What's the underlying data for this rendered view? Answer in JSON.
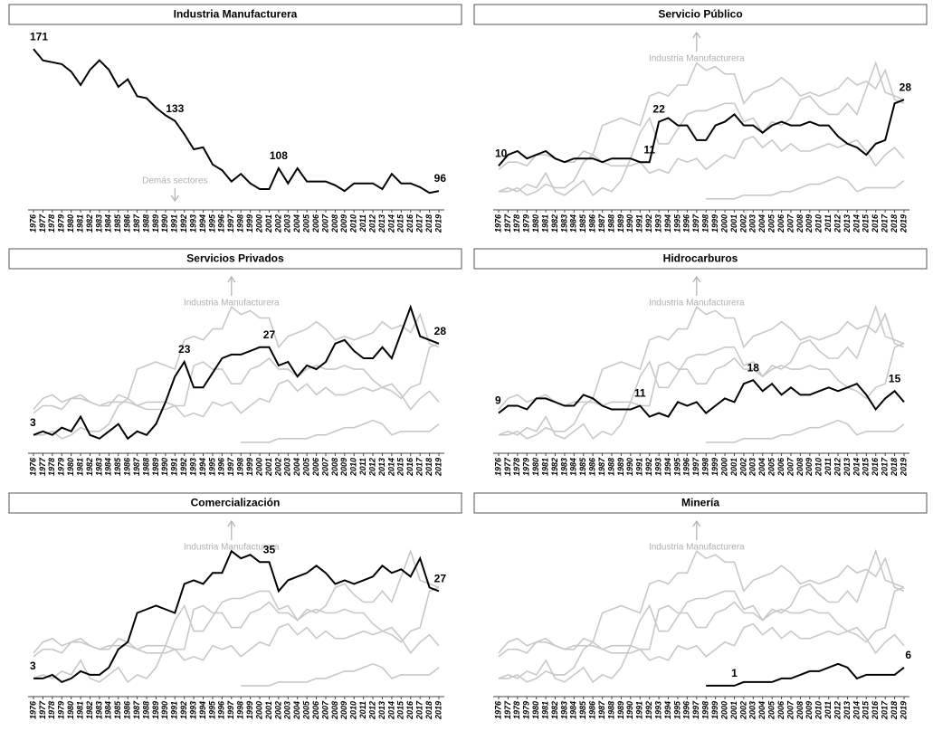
{
  "chart_data": [
    {
      "type": "line",
      "title": "Industria Manufacturera",
      "categories": [
        "1976",
        "1977",
        "1978",
        "1979",
        "1980",
        "1981",
        "1982",
        "1983",
        "1984",
        "1985",
        "1986",
        "1987",
        "1988",
        "1989",
        "1990",
        "1991",
        "1992",
        "1993",
        "1994",
        "1995",
        "1996",
        "1997",
        "1998",
        "1999",
        "2000",
        "2001",
        "2002",
        "2003",
        "2004",
        "2005",
        "2006",
        "2007",
        "2008",
        "2009",
        "2010",
        "2011",
        "2012",
        "2013",
        "2014",
        "2015",
        "2016",
        "2017",
        "2018",
        "2019"
      ],
      "series": [
        {
          "color": "#000000",
          "values": [
            171,
            165,
            164,
            163,
            159,
            152,
            160,
            165,
            160,
            151,
            155,
            146,
            145,
            140,
            136,
            133,
            126,
            118,
            119,
            110,
            107,
            101,
            105,
            100,
            97,
            97,
            108,
            100,
            108,
            101,
            101,
            101,
            99,
            96,
            100,
            100,
            100,
            97,
            105,
            100,
            100,
            98,
            95,
            96
          ]
        }
      ],
      "labeled_points": [
        0,
        15,
        26,
        43
      ],
      "ylim": [
        86,
        183
      ],
      "show_others": false,
      "others_color": "#c8c8c8",
      "annotation": "Demás sectores",
      "annotation_arrow": "down"
    },
    {
      "type": "line",
      "title": "Servicio Público",
      "categories": [
        "1976",
        "1977",
        "1978",
        "1979",
        "1980",
        "1981",
        "1982",
        "1983",
        "1984",
        "1985",
        "1986",
        "1987",
        "1988",
        "1989",
        "1990",
        "1991",
        "1992",
        "1993",
        "1994",
        "1995",
        "1996",
        "1997",
        "1998",
        "1999",
        "2000",
        "2001",
        "2002",
        "2003",
        "2004",
        "2005",
        "2006",
        "2007",
        "2008",
        "2009",
        "2010",
        "2011",
        "2012",
        "2013",
        "2014",
        "2015",
        "2016",
        "2017",
        "2018",
        "2019"
      ],
      "series": [
        {
          "color": "#000000",
          "values": [
            10,
            13,
            14,
            12,
            13,
            14,
            12,
            11,
            12,
            12,
            12,
            11,
            12,
            12,
            12,
            11,
            11,
            22,
            23,
            21,
            21,
            17,
            17,
            21,
            22,
            24,
            21,
            21,
            19,
            21,
            22,
            21,
            21,
            22,
            21,
            21,
            18,
            16,
            15,
            13,
            16,
            17,
            27,
            28
          ]
        }
      ],
      "labeled_points": [
        0,
        16,
        17,
        43
      ],
      "ylim": [
        -2,
        48
      ],
      "show_others": true,
      "others_color": "#c8c8c8",
      "annotation": "Industria Manufacturera",
      "annotation_arrow": "up"
    },
    {
      "type": "line",
      "title": "Servicios Privados",
      "categories": [
        "1976",
        "1977",
        "1978",
        "1979",
        "1980",
        "1981",
        "1982",
        "1983",
        "1984",
        "1985",
        "1986",
        "1987",
        "1988",
        "1989",
        "1990",
        "1991",
        "1992",
        "1993",
        "1994",
        "1995",
        "1996",
        "1997",
        "1998",
        "1999",
        "2000",
        "2001",
        "2002",
        "2003",
        "2004",
        "2005",
        "2006",
        "2007",
        "2008",
        "2009",
        "2010",
        "2011",
        "2012",
        "2013",
        "2014",
        "2015",
        "2016",
        "2017",
        "2018",
        "2019"
      ],
      "series": [
        {
          "color": "#000000",
          "values": [
            3,
            4,
            3,
            5,
            4,
            8,
            3,
            2,
            4,
            6,
            2,
            4,
            3,
            6,
            12,
            19,
            23,
            16,
            16,
            20,
            24,
            25,
            25,
            26,
            27,
            27,
            22,
            23,
            19,
            22,
            21,
            23,
            28,
            29,
            26,
            24,
            24,
            27,
            24,
            31,
            38,
            30,
            29,
            28
          ]
        }
      ],
      "labeled_points": [
        0,
        16,
        25,
        43
      ],
      "ylim": [
        -2,
        48
      ],
      "show_others": true,
      "others_color": "#c8c8c8",
      "annotation": "Industria Manufacturera",
      "annotation_arrow": "up"
    },
    {
      "type": "line",
      "title": "Hidrocarburos",
      "categories": [
        "1976",
        "1977",
        "1978",
        "1979",
        "1980",
        "1981",
        "1982",
        "1983",
        "1984",
        "1985",
        "1986",
        "1987",
        "1988",
        "1989",
        "1990",
        "1991",
        "1992",
        "1993",
        "1994",
        "1995",
        "1996",
        "1997",
        "1998",
        "1999",
        "2000",
        "2001",
        "2002",
        "2003",
        "2004",
        "2005",
        "2006",
        "2007",
        "2008",
        "2009",
        "2010",
        "2011",
        "2012",
        "2013",
        "2014",
        "2015",
        "2016",
        "2017",
        "2018",
        "2019"
      ],
      "series": [
        {
          "color": "#000000",
          "values": [
            9,
            11,
            11,
            10,
            13,
            13,
            12,
            11,
            11,
            14,
            13,
            11,
            10,
            10,
            10,
            11,
            8,
            9,
            8,
            12,
            11,
            12,
            9,
            11,
            13,
            12,
            17,
            18,
            15,
            17,
            14,
            16,
            14,
            14,
            15,
            16,
            15,
            16,
            17,
            14,
            10,
            13,
            15,
            12
          ]
        }
      ],
      "labeled_points": [
        0,
        15,
        27,
        42
      ],
      "ylim": [
        -2,
        48
      ],
      "show_others": true,
      "others_color": "#c8c8c8",
      "annotation": "Industria Manufacturera",
      "annotation_arrow": "up"
    },
    {
      "type": "line",
      "title": "Comercialización",
      "categories": [
        "1976",
        "1977",
        "1978",
        "1979",
        "1980",
        "1981",
        "1982",
        "1983",
        "1984",
        "1985",
        "1986",
        "1987",
        "1988",
        "1989",
        "1990",
        "1991",
        "1992",
        "1993",
        "1994",
        "1995",
        "1996",
        "1997",
        "1998",
        "1999",
        "2000",
        "2001",
        "2002",
        "2003",
        "2004",
        "2005",
        "2006",
        "2007",
        "2008",
        "2009",
        "2010",
        "2011",
        "2012",
        "2013",
        "2014",
        "2015",
        "2016",
        "2017",
        "2018",
        "2019"
      ],
      "series": [
        {
          "color": "#000000",
          "values": [
            3,
            3,
            4,
            2,
            3,
            5,
            4,
            4,
            6,
            11,
            13,
            21,
            22,
            23,
            22,
            21,
            29,
            30,
            29,
            32,
            32,
            38,
            36,
            37,
            35,
            35,
            27,
            30,
            31,
            32,
            34,
            32,
            29,
            30,
            29,
            30,
            31,
            34,
            32,
            33,
            31,
            36,
            28,
            27
          ]
        }
      ],
      "labeled_points": [
        0,
        25,
        43
      ],
      "ylim": [
        -2,
        48
      ],
      "show_others": true,
      "others_color": "#c8c8c8",
      "annotation": "Industria Manufacturera",
      "annotation_arrow": "up"
    },
    {
      "type": "line",
      "title": "Minería",
      "categories": [
        "1976",
        "1977",
        "1978",
        "1979",
        "1980",
        "1981",
        "1982",
        "1983",
        "1984",
        "1985",
        "1986",
        "1987",
        "1988",
        "1989",
        "1990",
        "1991",
        "1992",
        "1993",
        "1994",
        "1995",
        "1996",
        "1997",
        "1998",
        "1999",
        "2000",
        "2001",
        "2002",
        "2003",
        "2004",
        "2005",
        "2006",
        "2007",
        "2008",
        "2009",
        "2010",
        "2011",
        "2012",
        "2013",
        "2014",
        "2015",
        "2016",
        "2017",
        "2018",
        "2019"
      ],
      "series": [
        {
          "color": "#000000",
          "values": [
            null,
            null,
            null,
            null,
            null,
            null,
            null,
            null,
            null,
            null,
            null,
            null,
            null,
            null,
            null,
            null,
            null,
            null,
            null,
            null,
            null,
            null,
            1,
            1,
            1,
            1,
            2,
            2,
            2,
            2,
            3,
            3,
            4,
            5,
            5,
            6,
            7,
            6,
            3,
            4,
            4,
            4,
            4,
            6
          ]
        }
      ],
      "labeled_points": [
        25,
        43
      ],
      "ylim": [
        -2,
        48
      ],
      "show_others": true,
      "others_color": "#c8c8c8",
      "annotation": "Industria Manufacturera",
      "annotation_arrow": "up"
    }
  ]
}
